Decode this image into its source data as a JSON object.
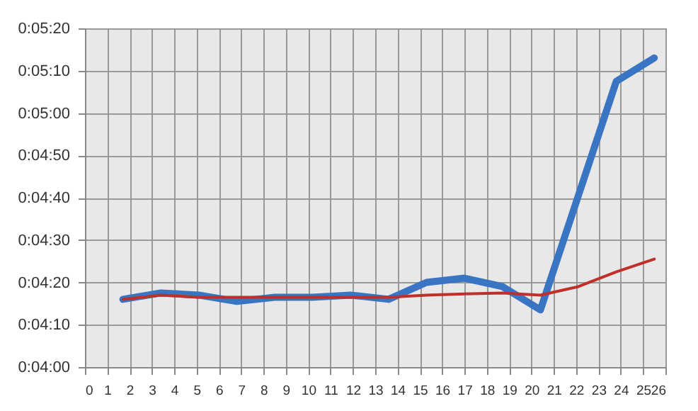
{
  "chart_data": {
    "type": "line",
    "x": [
      1.7,
      3.4,
      5.1,
      6.8,
      8.5,
      10.2,
      11.9,
      13.6,
      15.3,
      17,
      18.7,
      20.4,
      22.1,
      23.8,
      25.5
    ],
    "series": [
      {
        "color": "#3a75c4",
        "values": [
          256,
          257.5,
          257,
          255.5,
          256.5,
          256.5,
          257,
          256,
          260,
          261,
          259,
          253.5,
          280.5,
          307.5,
          313
        ]
      },
      {
        "color": "#c0302a",
        "values": [
          256,
          257,
          256.5,
          256.5,
          256.5,
          256.5,
          256.5,
          256.5,
          257,
          257.3,
          257.5,
          257,
          259,
          262.5,
          265.5
        ]
      }
    ],
    "xlim": [
      0,
      26
    ],
    "xticks": [
      0,
      1,
      2,
      3,
      4,
      5,
      6,
      7,
      8,
      9,
      10,
      11,
      12,
      13,
      14,
      15,
      16,
      17,
      18,
      19,
      20,
      21,
      22,
      23,
      24,
      25,
      26
    ],
    "ylim": [
      240,
      320
    ],
    "yticks": [
      {
        "value": 240,
        "label": "0:04:00"
      },
      {
        "value": 250,
        "label": "0:04:10"
      },
      {
        "value": 260,
        "label": "0:04:20"
      },
      {
        "value": 270,
        "label": "0:04:30"
      },
      {
        "value": 280,
        "label": "0:04:40"
      },
      {
        "value": 290,
        "label": "0:04:50"
      },
      {
        "value": 300,
        "label": "0:05:00"
      },
      {
        "value": 310,
        "label": "0:05:10"
      },
      {
        "value": 320,
        "label": "0:05:20"
      }
    ],
    "grid": true,
    "marker": "none",
    "line_style": "solid"
  }
}
